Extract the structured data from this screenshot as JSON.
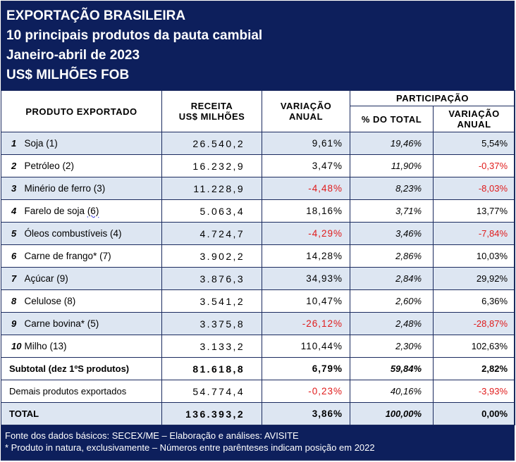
{
  "header": {
    "line1": "EXPORTAÇÃO BRASILEIRA",
    "line2": "10 principais produtos da pauta cambial",
    "line3": "Janeiro-abril de 2023",
    "line4": "US$ MILHÕES FOB"
  },
  "columns": {
    "produto": "PRODUTO EXPORTADO",
    "receita_l1": "RECEITA",
    "receita_l2": "US$ MILHÕES",
    "variacao_l1": "VARIAÇÃO",
    "variacao_l2": "ANUAL",
    "participacao": "PARTICIPAÇÃO",
    "pct_total": "% DO TOTAL",
    "part_var_l1": "VARIAÇÃO",
    "part_var_l2": "ANUAL"
  },
  "rows": [
    {
      "rank": "1",
      "produto": "Soja (1)",
      "receita": "26.540,2",
      "variacao": "9,61%",
      "share": "19,46%",
      "share_var": "5,54%"
    },
    {
      "rank": "2",
      "produto": "Petróleo (2)",
      "receita": "16.232,9",
      "variacao": "3,47%",
      "share": "11,90%",
      "share_var": "-0,37%"
    },
    {
      "rank": "3",
      "produto": "Minério de ferro (3)",
      "receita": "11.228,9",
      "variacao": "-4,48%",
      "share": "8,23%",
      "share_var": "-8,03%"
    },
    {
      "rank": "4",
      "produto": "Farelo de soja (6)",
      "receita": "5.063,4",
      "variacao": "18,16%",
      "share": "3,71%",
      "share_var": "13,77%"
    },
    {
      "rank": "5",
      "produto": "Óleos combustíveis (4)",
      "receita": "4.724,7",
      "variacao": "-4,29%",
      "share": "3,46%",
      "share_var": "-7,84%"
    },
    {
      "rank": "6",
      "produto": "Carne de frango* (7)",
      "receita": "3.902,2",
      "variacao": "14,28%",
      "share": "2,86%",
      "share_var": "10,03%"
    },
    {
      "rank": "7",
      "produto": "Açúcar (9)",
      "receita": "3.876,3",
      "variacao": "34,93%",
      "share": "2,84%",
      "share_var": "29,92%"
    },
    {
      "rank": "8",
      "produto": "Celulose (8)",
      "receita": "3.541,2",
      "variacao": "10,47%",
      "share": "2,60%",
      "share_var": "6,36%"
    },
    {
      "rank": "9",
      "produto": "Carne bovina* (5)",
      "receita": "3.375,8",
      "variacao": "-26,12%",
      "share": "2,48%",
      "share_var": "-28,87%"
    },
    {
      "rank": "10",
      "produto": "Milho (13)",
      "receita": "3.133,2",
      "variacao": "110,44%",
      "share": "2,30%",
      "share_var": "102,63%"
    }
  ],
  "subtotal": {
    "label": "Subtotal (dez 1ºS produtos)",
    "receita": "81.618,8",
    "variacao": "6,79%",
    "share": "59,84%",
    "share_var": "2,82%"
  },
  "demais": {
    "label": "Demais produtos exportados",
    "receita": "54.774,4",
    "variacao": "-0,23%",
    "share": "40,16%",
    "share_var": "-3,93%"
  },
  "total": {
    "label": "TOTAL",
    "receita": "136.393,2",
    "variacao": "3,86%",
    "share": "100,00%",
    "share_var": "0,00%"
  },
  "footer": {
    "line1": "Fonte dos dados básicos: SECEX/ME – Elaboração e análises: AVISITE",
    "line2": "* Produto in natura, exclusivamente – Números entre parênteses indicam posição em 2022"
  },
  "colors": {
    "header_bg": "#0d1f5c",
    "shaded_row": "#dde6f2",
    "negative": "#e01b1b"
  }
}
